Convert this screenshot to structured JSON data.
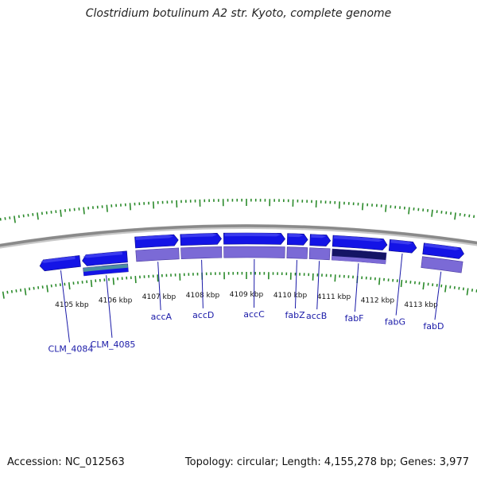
{
  "title": "Clostridium botulinum A2 str. Kyoto, complete genome",
  "footer": {
    "accession": "Accession: NC_012563",
    "summary": "Topology: circular; Length: 4,155,278 bp; Genes: 3,977"
  },
  "colors": {
    "backbone": "#8a8a8a",
    "gene_forward": "#1414e6",
    "gene_reverse": "#1414e6",
    "cds_feature": "#7b6ad6",
    "cds_dark": "#141464",
    "cds_teal": "#4b8fa0",
    "tick": "#2a8a2a",
    "label": "#1a1aa8"
  },
  "ticks": [
    {
      "label": "4105 kbp",
      "kbp": 4105
    },
    {
      "label": "4106 kbp",
      "kbp": 4106
    },
    {
      "label": "4107 kbp",
      "kbp": 4107
    },
    {
      "label": "4108 kbp",
      "kbp": 4108
    },
    {
      "label": "4109 kbp",
      "kbp": 4109
    },
    {
      "label": "4110 kbp",
      "kbp": 4110
    },
    {
      "label": "4111 kbp",
      "kbp": 4111
    },
    {
      "label": "4112 kbp",
      "kbp": 4112
    },
    {
      "label": "4113 kbp",
      "kbp": 4113
    }
  ],
  "genes": [
    {
      "name": "CLM_4084",
      "start": 4104.4,
      "end": 4105.3,
      "strand": "reverse",
      "cds": false
    },
    {
      "name": "CLM_4085",
      "start": 4105.35,
      "end": 4106.35,
      "strand": "reverse",
      "cds": true,
      "cds_color": "teal"
    },
    {
      "name": "accA",
      "start": 4106.55,
      "end": 4107.5,
      "strand": "forward",
      "cds": true
    },
    {
      "name": "accD",
      "start": 4107.55,
      "end": 4108.45,
      "strand": "forward",
      "cds": true
    },
    {
      "name": "accC",
      "start": 4108.5,
      "end": 4109.85,
      "strand": "forward",
      "cds": true
    },
    {
      "name": "fabZ",
      "start": 4109.9,
      "end": 4110.35,
      "strand": "forward",
      "cds": true
    },
    {
      "name": "accB",
      "start": 4110.4,
      "end": 4110.85,
      "strand": "forward",
      "cds": true
    },
    {
      "name": "fabF",
      "start": 4110.9,
      "end": 4112.1,
      "strand": "forward",
      "cds": true,
      "cds_color": "dark"
    },
    {
      "name": "fabG",
      "start": 4112.15,
      "end": 4112.75,
      "strand": "forward",
      "cds": false
    },
    {
      "name": "fabD",
      "start": 4112.9,
      "end": 4113.8,
      "strand": "forward",
      "cds": true
    }
  ]
}
